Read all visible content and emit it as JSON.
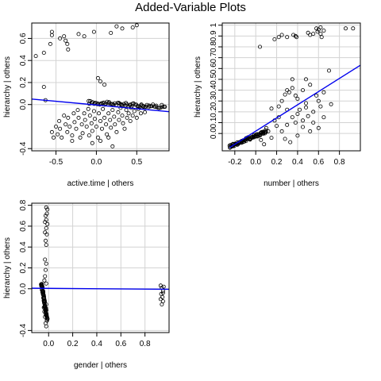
{
  "title": "Added-Variable Plots",
  "chart_data": [
    {
      "type": "scatter",
      "title": "",
      "xlabel": "active.time | others",
      "ylabel": "hierarchy  | others",
      "xlim": [
        -0.8,
        0.9
      ],
      "ylim": [
        -0.42,
        0.74
      ],
      "xticks": [
        -0.5,
        0.0,
        0.5
      ],
      "yticks": [
        -0.4,
        0.0,
        0.2,
        0.4,
        0.6
      ],
      "grid": true,
      "fit_line": {
        "x": [
          -0.8,
          0.9
        ],
        "y": [
          0.05,
          -0.065
        ]
      },
      "points": [
        [
          -0.75,
          0.44
        ],
        [
          -0.65,
          0.47
        ],
        [
          -0.57,
          0.55
        ],
        [
          -0.55,
          0.63
        ],
        [
          -0.55,
          0.66
        ],
        [
          -0.45,
          0.6
        ],
        [
          -0.4,
          0.62
        ],
        [
          -0.38,
          0.58
        ],
        [
          -0.36,
          0.55
        ],
        [
          -0.35,
          0.5
        ],
        [
          -0.22,
          0.64
        ],
        [
          -0.15,
          0.62
        ],
        [
          -0.03,
          0.66
        ],
        [
          0.18,
          0.65
        ],
        [
          0.25,
          0.71
        ],
        [
          0.32,
          0.69
        ],
        [
          0.45,
          0.7
        ],
        [
          0.5,
          0.72
        ],
        [
          -0.65,
          0.16
        ],
        [
          -0.63,
          0.04
        ],
        [
          0.02,
          0.24
        ],
        [
          0.05,
          0.21
        ],
        [
          0.1,
          0.18
        ],
        [
          -0.55,
          -0.25
        ],
        [
          -0.53,
          -0.3
        ],
        [
          -0.5,
          -0.2
        ],
        [
          -0.48,
          -0.27
        ],
        [
          -0.46,
          -0.15
        ],
        [
          -0.45,
          -0.22
        ],
        [
          -0.43,
          -0.3
        ],
        [
          -0.4,
          -0.1
        ],
        [
          -0.38,
          -0.18
        ],
        [
          -0.36,
          -0.25
        ],
        [
          -0.35,
          -0.12
        ],
        [
          -0.33,
          -0.2
        ],
        [
          -0.3,
          -0.28
        ],
        [
          -0.28,
          -0.08
        ],
        [
          -0.27,
          -0.16
        ],
        [
          -0.25,
          -0.22
        ],
        [
          -0.23,
          -0.05
        ],
        [
          -0.22,
          -0.12
        ],
        [
          -0.2,
          -0.3
        ],
        [
          -0.18,
          -0.18
        ],
        [
          -0.17,
          -0.26
        ],
        [
          -0.15,
          -0.08
        ],
        [
          -0.14,
          -0.14
        ],
        [
          -0.12,
          -0.2
        ],
        [
          -0.1,
          -0.04
        ],
        [
          -0.09,
          -0.28
        ],
        [
          -0.08,
          -0.1
        ],
        [
          -0.06,
          -0.17
        ],
        [
          -0.05,
          -0.24
        ],
        [
          -0.03,
          -0.06
        ],
        [
          -0.02,
          -0.13
        ],
        [
          0.0,
          -0.2
        ],
        [
          0.02,
          -0.3
        ],
        [
          0.03,
          -0.08
        ],
        [
          0.05,
          -0.15
        ],
        [
          0.07,
          -0.22
        ],
        [
          0.08,
          -0.04
        ],
        [
          0.1,
          -0.12
        ],
        [
          0.12,
          -0.18
        ],
        [
          0.13,
          -0.27
        ],
        [
          0.15,
          -0.08
        ],
        [
          0.17,
          -0.14
        ],
        [
          0.18,
          -0.21
        ],
        [
          0.2,
          -0.05
        ],
        [
          0.22,
          -0.11
        ],
        [
          0.23,
          -0.18
        ],
        [
          0.25,
          -0.25
        ],
        [
          0.27,
          -0.07
        ],
        [
          0.28,
          -0.14
        ],
        [
          0.3,
          -0.03
        ],
        [
          0.32,
          -0.1
        ],
        [
          0.33,
          -0.17
        ],
        [
          0.35,
          -0.22
        ],
        [
          0.37,
          -0.05
        ],
        [
          0.38,
          -0.12
        ],
        [
          0.4,
          -0.08
        ],
        [
          0.42,
          -0.15
        ],
        [
          0.43,
          -0.03
        ],
        [
          0.45,
          -0.1
        ],
        [
          0.47,
          -0.06
        ],
        [
          0.5,
          -0.12
        ],
        [
          0.52,
          -0.04
        ],
        [
          0.55,
          -0.08
        ],
        [
          0.58,
          -0.02
        ],
        [
          0.6,
          -0.07
        ],
        [
          0.2,
          -0.38
        ],
        [
          0.05,
          -0.33
        ],
        [
          -0.05,
          -0.35
        ],
        [
          0.15,
          -0.3
        ],
        [
          -0.3,
          -0.33
        ]
      ],
      "dense_band": {
        "x_from": -0.1,
        "x_to": 0.85,
        "y_from": 0.02,
        "y_to": -0.02,
        "count": 70
      }
    },
    {
      "type": "scatter",
      "title": "",
      "xlabel": "number | others",
      "ylabel": "hierarchy  | others",
      "xlim": [
        -0.32,
        1.0
      ],
      "ylim": [
        -0.16,
        1.02
      ],
      "xticks": [
        -0.2,
        0.0,
        0.2,
        0.4,
        0.6,
        0.8
      ],
      "yticks": [
        0.0,
        0.1,
        0.2,
        0.3,
        0.4,
        0.5,
        0.6,
        0.7,
        0.8,
        0.9,
        1.0
      ],
      "grid": true,
      "fit_line": {
        "x": [
          -0.25,
          1.0
        ],
        "y": [
          -0.13,
          0.63
        ]
      },
      "points": [
        [
          0.04,
          0.8
        ],
        [
          0.18,
          0.87
        ],
        [
          0.22,
          0.89
        ],
        [
          0.25,
          0.91
        ],
        [
          0.3,
          0.89
        ],
        [
          0.36,
          0.91
        ],
        [
          0.38,
          0.9
        ],
        [
          0.39,
          0.89
        ],
        [
          0.5,
          0.93
        ],
        [
          0.52,
          0.91
        ],
        [
          0.55,
          0.92
        ],
        [
          0.58,
          0.97
        ],
        [
          0.59,
          0.94
        ],
        [
          0.6,
          0.96
        ],
        [
          0.62,
          0.98
        ],
        [
          0.62,
          0.92
        ],
        [
          0.63,
          0.89
        ],
        [
          0.65,
          0.95
        ],
        [
          0.86,
          0.97
        ],
        [
          0.93,
          0.97
        ],
        [
          0.15,
          0.23
        ],
        [
          0.22,
          0.25
        ],
        [
          0.25,
          0.3
        ],
        [
          0.28,
          0.36
        ],
        [
          0.3,
          0.4
        ],
        [
          0.32,
          0.38
        ],
        [
          0.35,
          0.42
        ],
        [
          0.38,
          0.35
        ],
        [
          0.4,
          0.32
        ],
        [
          0.45,
          0.4
        ],
        [
          0.48,
          0.5
        ],
        [
          0.52,
          0.45
        ],
        [
          0.6,
          0.3
        ],
        [
          0.62,
          0.25
        ],
        [
          0.65,
          0.38
        ],
        [
          0.7,
          0.58
        ],
        [
          0.72,
          0.27
        ],
        [
          0.35,
          0.5
        ],
        [
          0.55,
          0.2
        ],
        [
          0.42,
          0.22
        ],
        [
          0.48,
          0.28
        ],
        [
          0.5,
          0.16
        ],
        [
          0.38,
          0.1
        ],
        [
          0.45,
          0.06
        ],
        [
          0.3,
          0.08
        ],
        [
          0.25,
          0.02
        ],
        [
          0.2,
          0.07
        ],
        [
          0.35,
          0.15
        ],
        [
          0.55,
          0.1
        ],
        [
          0.6,
          0.05
        ],
        [
          0.4,
          -0.02
        ],
        [
          0.28,
          -0.05
        ],
        [
          0.33,
          -0.08
        ],
        [
          0.15,
          -0.04
        ],
        [
          0.18,
          0.12
        ],
        [
          0.1,
          0.05
        ],
        [
          0.05,
          -0.06
        ],
        [
          0.08,
          -0.1
        ],
        [
          0.12,
          0.02
        ],
        [
          0.45,
          0.12
        ],
        [
          0.52,
          0.02
        ],
        [
          0.65,
          0.15
        ],
        [
          0.48,
          0.24
        ],
        [
          0.58,
          0.35
        ],
        [
          0.3,
          0.22
        ],
        [
          0.22,
          0.15
        ],
        [
          0.4,
          0.18
        ]
      ],
      "dense_band": {
        "x_from": -0.25,
        "x_to": 0.1,
        "y_from": -0.12,
        "y_to": 0.02,
        "count": 80
      }
    },
    {
      "type": "scatter",
      "title": "",
      "xlabel": "gender | others",
      "ylabel": "hierarchy  | others",
      "xlim": [
        -0.14,
        1.0
      ],
      "ylim": [
        -0.42,
        0.82
      ],
      "xticks": [
        0.0,
        0.2,
        0.4,
        0.6,
        0.8
      ],
      "yticks": [
        -0.4,
        0.0,
        0.2,
        0.4,
        0.6,
        0.8
      ],
      "grid": true,
      "fit_line": {
        "x": [
          -0.14,
          1.0
        ],
        "y": [
          0.005,
          -0.005
        ]
      },
      "points": [
        [
          -0.02,
          0.78
        ],
        [
          -0.01,
          0.76
        ],
        [
          -0.015,
          0.72
        ],
        [
          -0.025,
          0.7
        ],
        [
          -0.02,
          0.66
        ],
        [
          -0.03,
          0.64
        ],
        [
          -0.01,
          0.62
        ],
        [
          -0.02,
          0.58
        ],
        [
          -0.03,
          0.54
        ],
        [
          -0.015,
          0.52
        ],
        [
          -0.025,
          0.46
        ],
        [
          -0.02,
          0.42
        ],
        [
          -0.03,
          0.28
        ],
        [
          -0.02,
          0.24
        ],
        [
          -0.025,
          0.18
        ],
        [
          -0.03,
          0.12
        ],
        [
          -0.035,
          0.08
        ],
        [
          -0.02,
          0.05
        ],
        [
          -0.015,
          -0.3
        ],
        [
          -0.02,
          -0.36
        ],
        [
          -0.025,
          -0.33
        ],
        [
          -0.03,
          -0.27
        ],
        [
          -0.035,
          -0.22
        ],
        [
          -0.04,
          -0.18
        ],
        [
          -0.02,
          -0.15
        ],
        [
          0.93,
          0.03
        ],
        [
          0.94,
          0.01
        ],
        [
          0.95,
          -0.02
        ],
        [
          0.935,
          -0.05
        ],
        [
          0.945,
          -0.08
        ],
        [
          0.95,
          -0.12
        ],
        [
          0.94,
          -0.15
        ],
        [
          0.955,
          0.02
        ],
        [
          0.93,
          -0.1
        ],
        [
          0.95,
          -0.04
        ]
      ],
      "dense_band": {
        "x_from": -0.06,
        "x_to": -0.01,
        "y_from": 0.05,
        "y_to": -0.3,
        "count": 70
      }
    }
  ]
}
